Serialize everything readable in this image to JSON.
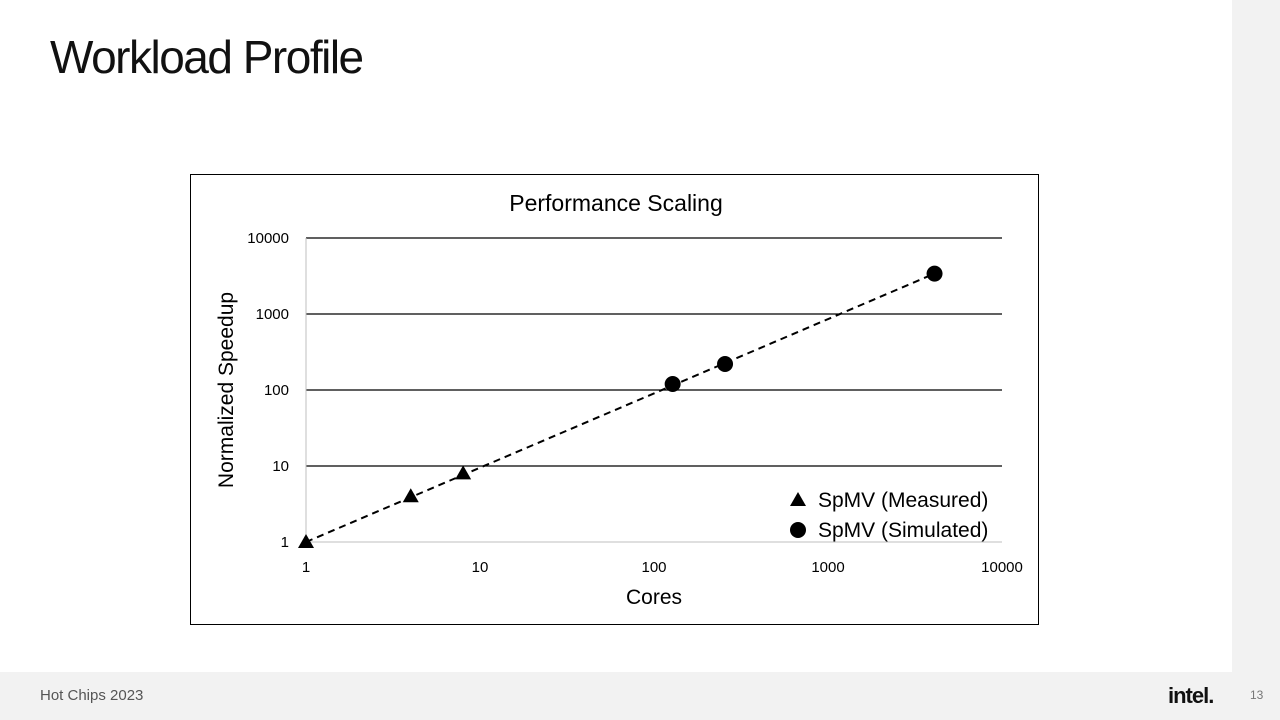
{
  "slide": {
    "title": "Workload Profile",
    "footer": "Hot Chips 2023",
    "logo": "intel.",
    "page_number": "13"
  },
  "chart_data": {
    "type": "scatter",
    "title": "Performance Scaling",
    "xlabel": "Cores",
    "ylabel": "Normalized Speedup",
    "x_scale": "log",
    "y_scale": "log",
    "xlim": [
      1,
      10000
    ],
    "ylim": [
      1,
      10000
    ],
    "x_ticks": [
      "1",
      "10",
      "100",
      "1000",
      "10000"
    ],
    "y_ticks": [
      "1",
      "10",
      "100",
      "1000",
      "10000"
    ],
    "grid": "horizontal",
    "legend_position": "bottom-right",
    "series": [
      {
        "name": "SpMV (Measured)",
        "marker": "triangle",
        "color": "#000000",
        "points": [
          {
            "x": 1,
            "y": 1
          },
          {
            "x": 4,
            "y": 4
          },
          {
            "x": 8,
            "y": 8
          }
        ]
      },
      {
        "name": "SpMV (Simulated)",
        "marker": "circle",
        "color": "#000000",
        "points": [
          {
            "x": 128,
            "y": 120
          },
          {
            "x": 256,
            "y": 220
          },
          {
            "x": 4096,
            "y": 3400
          }
        ]
      }
    ],
    "trendline": {
      "style": "dashed",
      "from": {
        "x": 1,
        "y": 1
      },
      "to": {
        "x": 4096,
        "y": 3400
      }
    }
  }
}
